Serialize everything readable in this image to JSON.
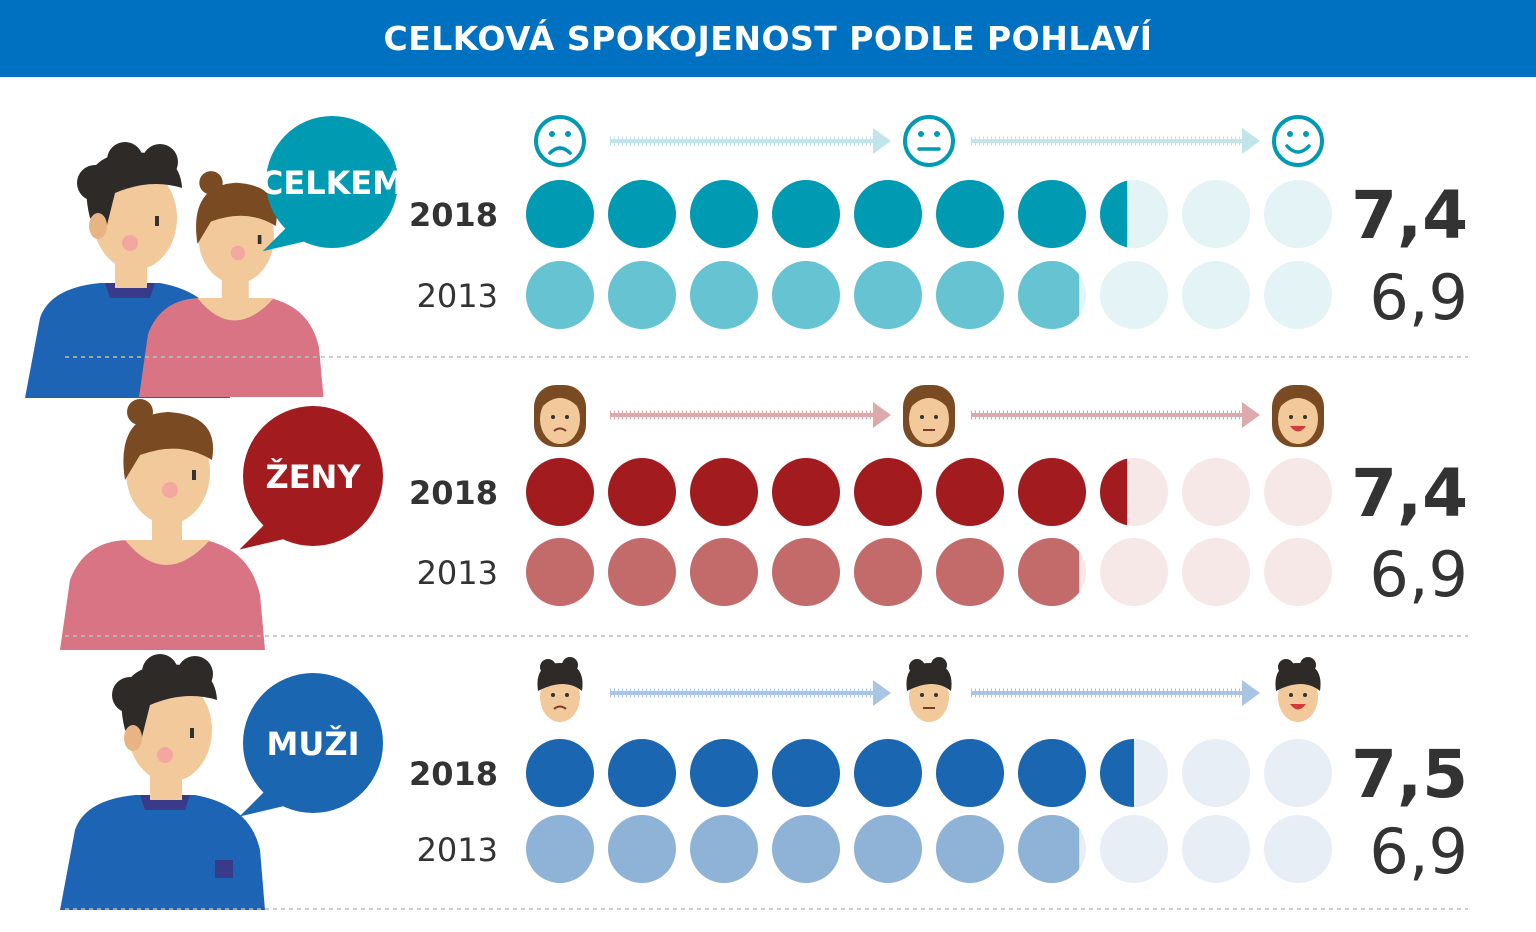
{
  "header": {
    "title": "CELKOVÁ SPOKOJENOST PODLE POHLAVÍ"
  },
  "chart_data": {
    "type": "dot-rating",
    "title": "CELKOVÁ SPOKOJENOST PODLE POHLAVÍ",
    "scale_max": 10,
    "years": [
      "2018",
      "2013"
    ],
    "groups": [
      {
        "label": "CELKEM",
        "icon_set": "smiley-icons",
        "colors": {
          "y2018": "#019ab3",
          "y2013": "#66c4d2",
          "empty": "#e4f3f6",
          "arrow": "#c2e5ec",
          "bubble": "#019ab3"
        },
        "values": {
          "2018": 7.4,
          "2013": 6.9
        },
        "value_labels": {
          "2018": "7,4",
          "2013": "6,9"
        }
      },
      {
        "label": "ŽENY",
        "icon_set": "woman-face-icons",
        "colors": {
          "y2018": "#a21c1f",
          "y2013": "#c36a6b",
          "empty": "#f7e8e8",
          "arrow": "#dcaaad",
          "bubble": "#a21c1f"
        },
        "values": {
          "2018": 7.4,
          "2013": 6.9
        },
        "value_labels": {
          "2018": "7,4",
          "2013": "6,9"
        }
      },
      {
        "label": "MUŽI",
        "icon_set": "man-face-icons",
        "colors": {
          "y2018": "#1a66b0",
          "y2013": "#8fb3d7",
          "empty": "#e7eef6",
          "arrow": "#a9c5e3",
          "bubble": "#1a66b0"
        },
        "values": {
          "2018": 7.5,
          "2013": 6.9
        },
        "value_labels": {
          "2018": "7,5",
          "2013": "6,9"
        }
      }
    ]
  }
}
